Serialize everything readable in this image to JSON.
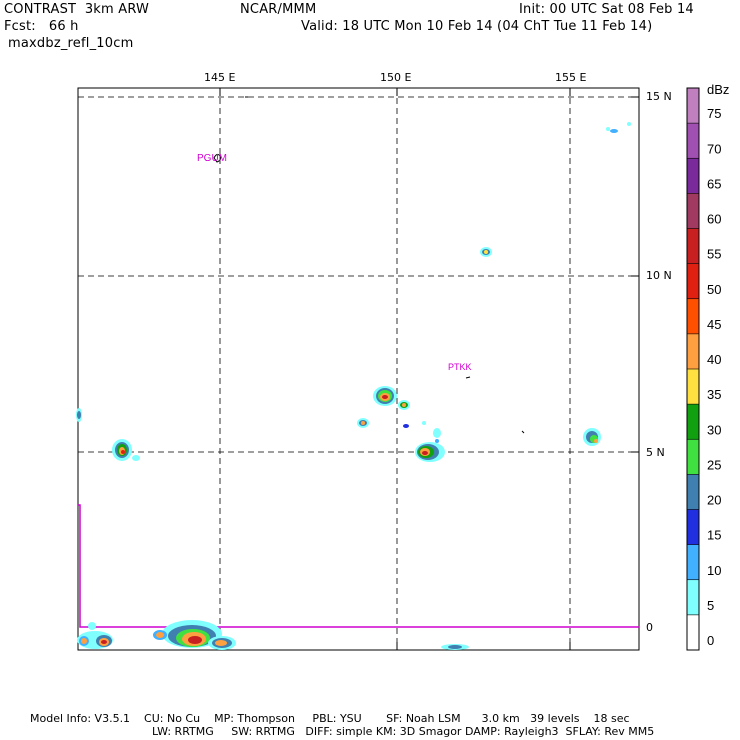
{
  "header": {
    "model": "CONTRAST  3km ARW",
    "center": "NCAR/MMM",
    "init": "Init: 00 UTC Sat 08 Feb 14",
    "fcst": "Fcst:   66 h",
    "valid": "Valid: 18 UTC Mon 10 Feb 14 (04 ChT Tue 11 Feb 14)",
    "field": "maxdbz_refl_10cm"
  },
  "axes": {
    "lon_labels": [
      "145 E",
      "150 E",
      "155 E"
    ],
    "lat_labels": [
      "15 N",
      "10 N",
      "5 N",
      "0"
    ]
  },
  "stations": [
    {
      "id": "PGUM"
    },
    {
      "id": "PTKK"
    }
  ],
  "colorbar": {
    "unit": "dBz",
    "levels": [
      "75",
      "70",
      "65",
      "60",
      "55",
      "50",
      "45",
      "40",
      "35",
      "30",
      "25",
      "20",
      "15",
      "10",
      "5",
      "0"
    ],
    "colors": [
      "#c080c0",
      "#a050b0",
      "#7a2a9a",
      "#a03a60",
      "#c82020",
      "#e02010",
      "#ff5000",
      "#ffa040",
      "#ffe040",
      "#10a010",
      "#40e040",
      "#4080b0",
      "#2030e0",
      "#40b0ff",
      "#80ffff",
      "#ffffff"
    ]
  },
  "footer": {
    "line1": "Model Info: V3.5.1    CU: No Cu    MP: Thompson     PBL: YSU       SF: Noah LSM      3.0 km   39 levels    18 sec",
    "line2": "LW: RRTMG     SW: RRTMG   DIFF: simple KM: 3D Smagor DAMP: Rayleigh3  SFLAY: Rev MM5"
  }
}
